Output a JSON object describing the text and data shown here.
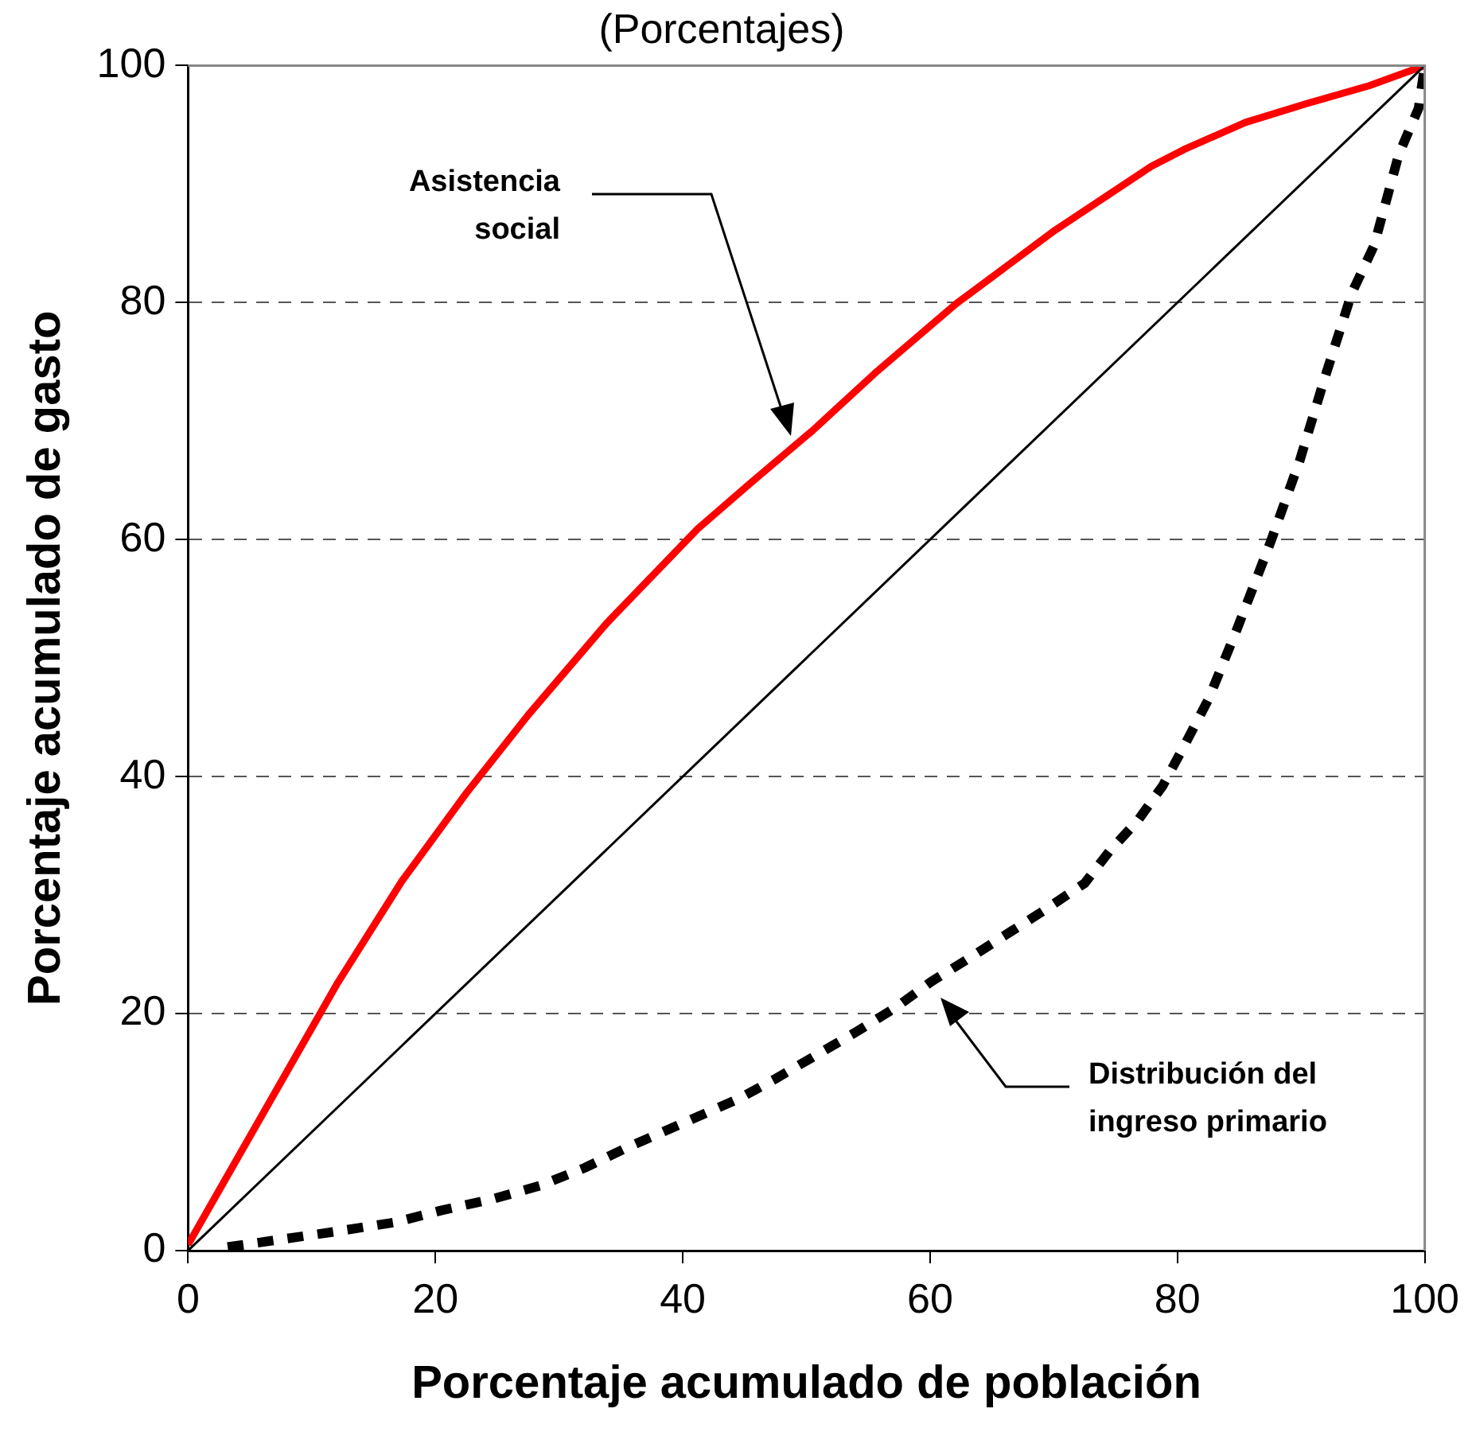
{
  "chart_data": {
    "type": "line",
    "title": "(Porcentajes)",
    "xlabel": "Porcentaje acumulado de población",
    "ylabel": "Porcentaje acumulado de gasto",
    "xlim": [
      0,
      100
    ],
    "ylim": [
      0,
      100
    ],
    "xticks": [
      0,
      20,
      40,
      60,
      80,
      100
    ],
    "yticks": [
      0,
      20,
      40,
      60,
      80,
      100
    ],
    "grid": "y",
    "legend": false,
    "marker": "none",
    "series": [
      {
        "color": "#000000",
        "line_style": "solid",
        "x": [
          0,
          100
        ],
        "values": [
          0,
          100
        ]
      },
      {
        "color": "#ff0000",
        "line_style": "solid",
        "x": [
          0,
          12.1,
          17.3,
          22.5,
          27.5,
          33.9,
          41.2,
          45.3,
          50.5,
          55.5,
          62.1,
          65.2,
          70.1,
          77.9,
          80.5,
          85.5,
          90.5,
          95.5,
          100
        ],
        "values": [
          0.5,
          22.6,
          31.2,
          38.6,
          45.2,
          53,
          60.9,
          64.6,
          69.2,
          74,
          79.9,
          82.3,
          86.1,
          91.5,
          92.9,
          95.2,
          96.8,
          98.3,
          100
        ]
      },
      {
        "color": "#000000",
        "line_style": "dotted",
        "x": [
          3.2,
          11.9,
          16.8,
          20.5,
          24.8,
          28.5,
          32.1,
          35.5,
          39.9,
          44.5,
          47.5,
          50.8,
          54.1,
          57.2,
          60.1,
          63.2,
          69.2,
          72.5,
          74.5,
          76.8,
          78.8,
          80.5,
          82.5,
          84.8,
          87.5,
          89.9,
          91.9,
          94.1,
          95.9,
          97.9,
          99.5,
          100
        ],
        "values": [
          0.3,
          1.6,
          2.4,
          3.4,
          4.4,
          5.5,
          7,
          8.7,
          10.7,
          12.8,
          14.5,
          16.5,
          18.5,
          20.5,
          22.7,
          24.7,
          28.7,
          31,
          33.7,
          36.3,
          39.2,
          42.5,
          46.5,
          52.4,
          59.7,
          66.7,
          73.6,
          80.8,
          84.8,
          92.5,
          96.4,
          100
        ]
      }
    ],
    "annotations": [
      "Asistencia\nsocial",
      "Distribución del\ningreso primario"
    ]
  }
}
